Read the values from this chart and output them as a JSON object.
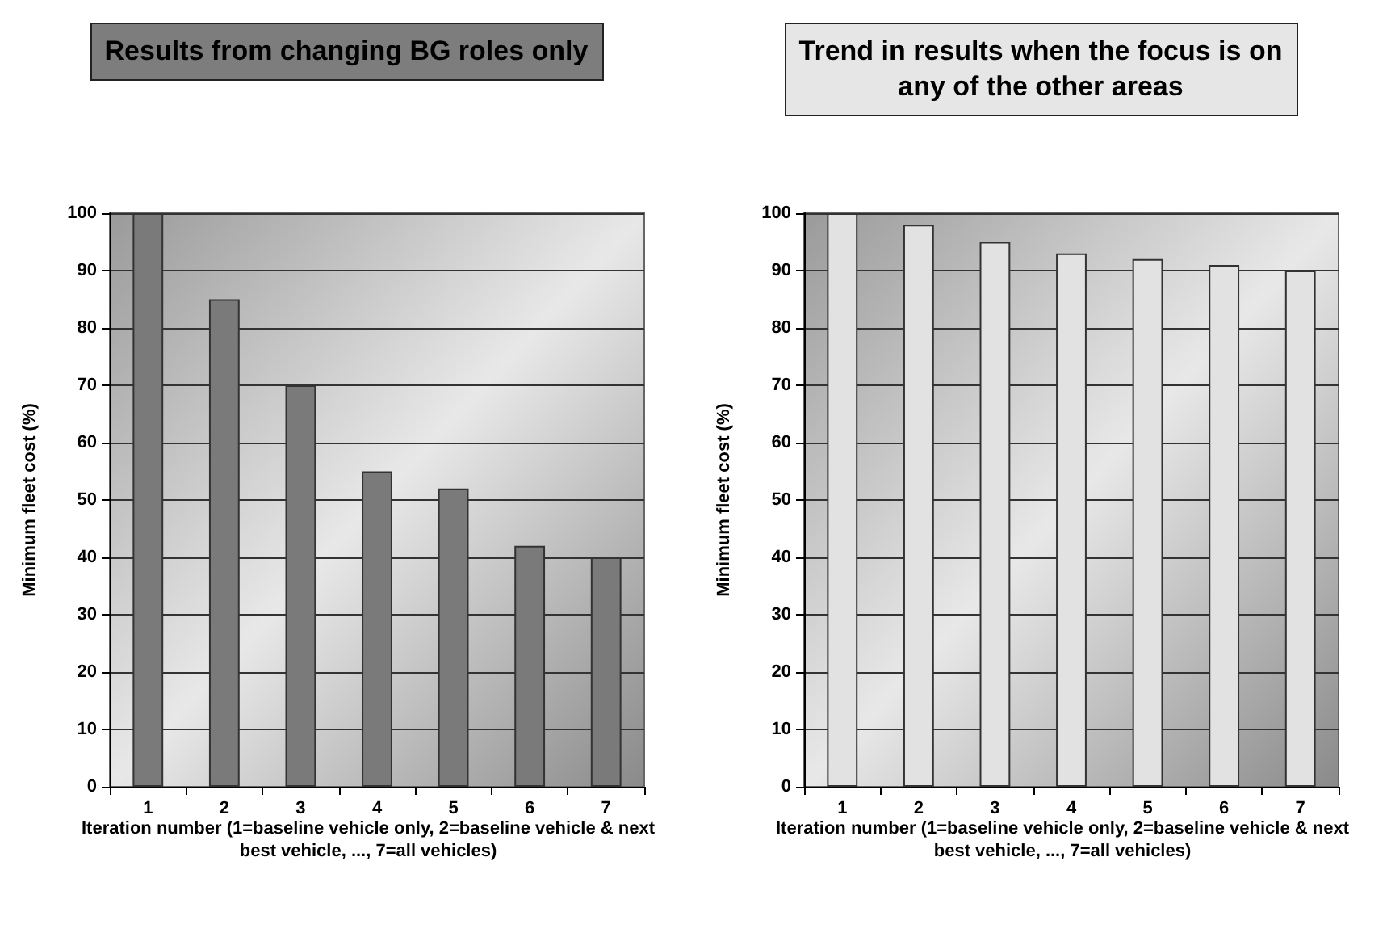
{
  "chart_data": [
    {
      "type": "bar",
      "title": "Results from changing BG roles only",
      "xlabel": "Iteration number (1=baseline vehicle only, 2=baseline vehicle & next best vehicle, ..., 7=all vehicles)",
      "ylabel": "Minimum fleet cost (%)",
      "categories": [
        "1",
        "2",
        "3",
        "4",
        "5",
        "6",
        "7"
      ],
      "values": [
        100,
        85,
        70,
        55,
        52,
        42,
        40
      ],
      "color": "#7a7a7a",
      "ylim": [
        0,
        100
      ],
      "yticks": [
        0,
        10,
        20,
        30,
        40,
        50,
        60,
        70,
        80,
        90,
        100
      ],
      "grid": "y"
    },
    {
      "type": "bar",
      "title": "Trend in results when the focus is on any of the other areas",
      "xlabel": "Iteration number (1=baseline vehicle only, 2=baseline vehicle & next best vehicle, ..., 7=all vehicles)",
      "ylabel": "Minimum fleet cost (%)",
      "categories": [
        "1",
        "2",
        "3",
        "4",
        "5",
        "6",
        "7"
      ],
      "values": [
        100,
        98,
        95,
        93,
        92,
        91,
        90
      ],
      "color": "#e2e2e2",
      "ylim": [
        0,
        100
      ],
      "yticks": [
        0,
        10,
        20,
        30,
        40,
        50,
        60,
        70,
        80,
        90,
        100
      ],
      "grid": "y"
    }
  ]
}
